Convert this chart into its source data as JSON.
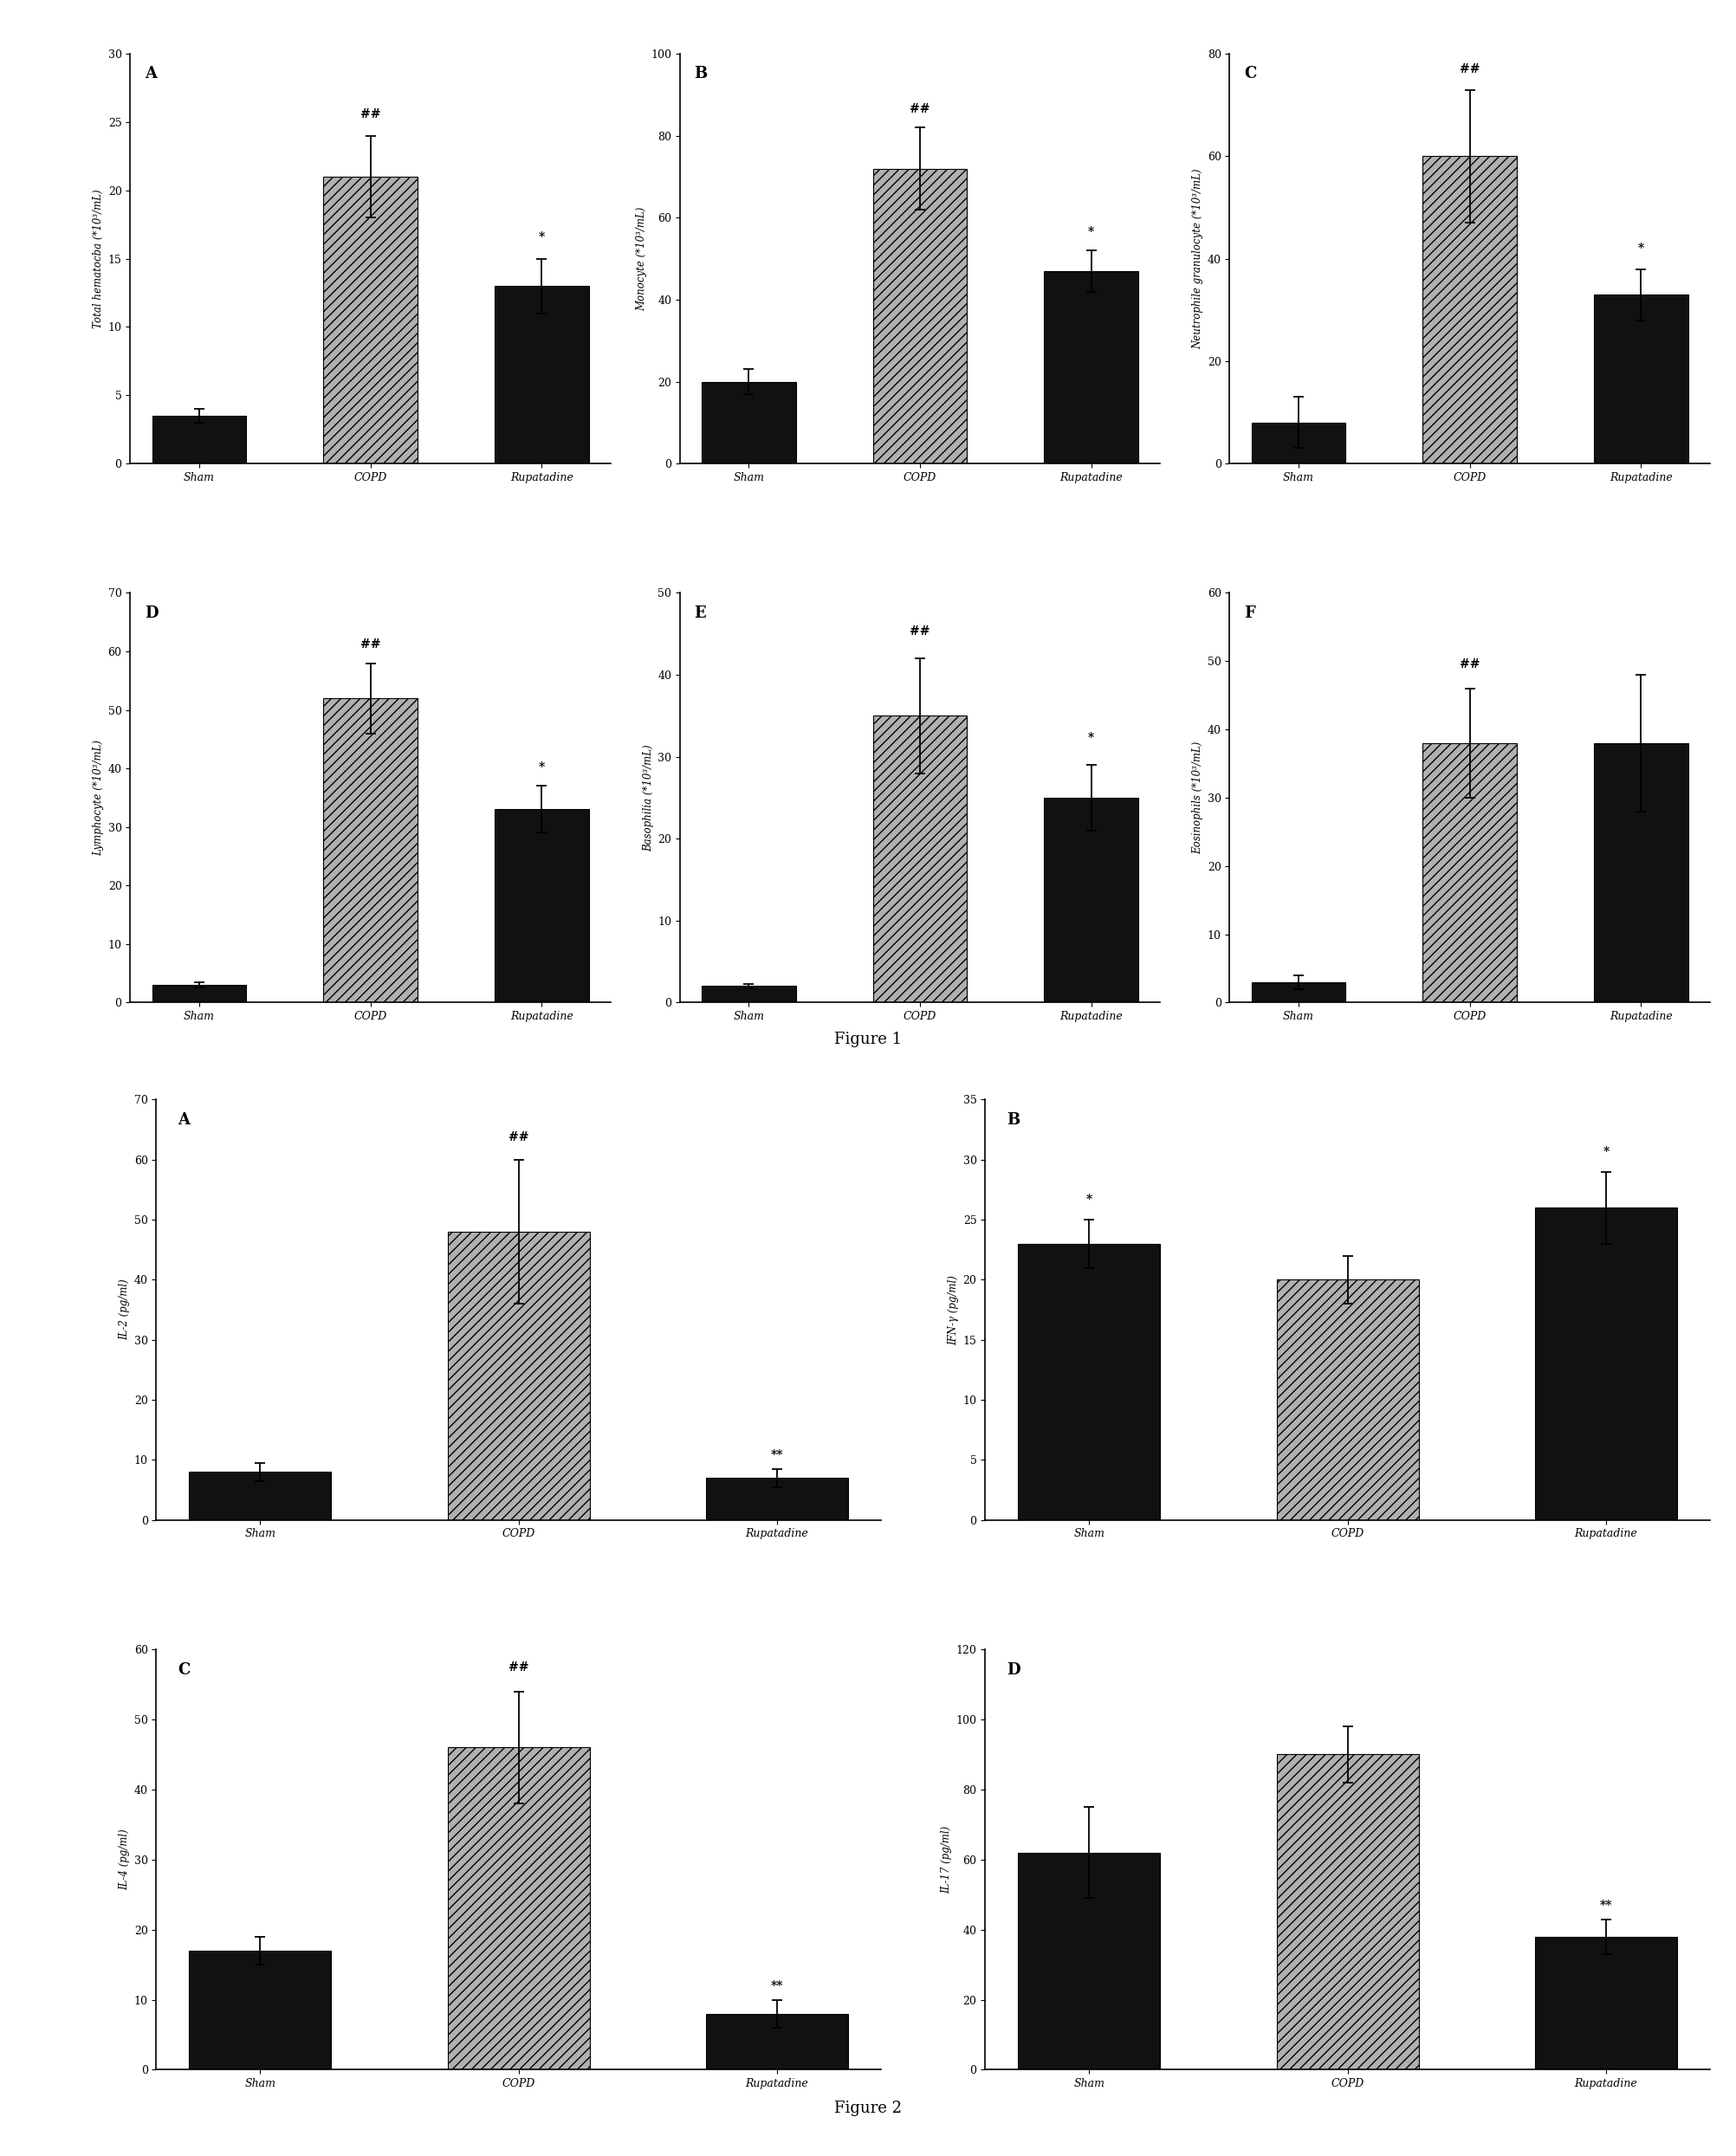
{
  "fig1": {
    "panels": [
      {
        "label": "A",
        "ylabel": "Total hematocba (*10³/mL)",
        "ylim": [
          0,
          30
        ],
        "yticks": [
          0,
          5,
          10,
          15,
          20,
          25,
          30
        ],
        "values": [
          3.5,
          21.0,
          13.0
        ],
        "errors": [
          0.5,
          3.0,
          2.0
        ],
        "colors": [
          "#111111",
          "#b0b0b0",
          "#111111"
        ],
        "hatches": [
          "",
          "///",
          ""
        ],
        "annotations": [
          "",
          "##",
          "*"
        ],
        "ann_above_error": [
          0.5,
          0.8,
          0.8
        ]
      },
      {
        "label": "B",
        "ylabel": "Monocyte (*10³/mL)",
        "ylim": [
          0,
          100
        ],
        "yticks": [
          0,
          20,
          40,
          60,
          80,
          100
        ],
        "values": [
          20.0,
          72.0,
          47.0
        ],
        "errors": [
          3.0,
          10.0,
          5.0
        ],
        "colors": [
          "#111111",
          "#b0b0b0",
          "#111111"
        ],
        "hatches": [
          "",
          "///",
          ""
        ],
        "annotations": [
          "",
          "##",
          "*"
        ],
        "ann_above_error": [
          1.0,
          2.0,
          2.0
        ]
      },
      {
        "label": "C",
        "ylabel": "Neutrophile granulocyte (*10³/mL)",
        "ylim": [
          0,
          80
        ],
        "yticks": [
          0,
          20,
          40,
          60,
          80
        ],
        "values": [
          8.0,
          60.0,
          33.0
        ],
        "errors": [
          5.0,
          13.0,
          5.0
        ],
        "colors": [
          "#111111",
          "#b0b0b0",
          "#111111"
        ],
        "hatches": [
          "",
          "///",
          ""
        ],
        "annotations": [
          "",
          "##",
          "*"
        ],
        "ann_above_error": [
          1.0,
          2.0,
          2.0
        ]
      },
      {
        "label": "D",
        "ylabel": "Lymphocyte (*10³/mL)",
        "ylim": [
          0,
          70
        ],
        "yticks": [
          0,
          10,
          20,
          30,
          40,
          50,
          60,
          70
        ],
        "values": [
          3.0,
          52.0,
          33.0
        ],
        "errors": [
          0.5,
          6.0,
          4.0
        ],
        "colors": [
          "#111111",
          "#b0b0b0",
          "#111111"
        ],
        "hatches": [
          "",
          "///",
          ""
        ],
        "annotations": [
          "",
          "##",
          "*"
        ],
        "ann_above_error": [
          0.5,
          1.5,
          1.5
        ]
      },
      {
        "label": "E",
        "ylabel": "Basophilia (*10³/mL)",
        "ylim": [
          0,
          50
        ],
        "yticks": [
          0,
          10,
          20,
          30,
          40,
          50
        ],
        "values": [
          2.0,
          35.0,
          25.0
        ],
        "errors": [
          0.3,
          7.0,
          4.0
        ],
        "colors": [
          "#111111",
          "#b0b0b0",
          "#111111"
        ],
        "hatches": [
          "",
          "///",
          ""
        ],
        "annotations": [
          "",
          "##",
          "*"
        ],
        "ann_above_error": [
          0.5,
          2.0,
          2.0
        ]
      },
      {
        "label": "F",
        "ylabel": "Eosinophils (*10³/mL)",
        "ylim": [
          0,
          60
        ],
        "yticks": [
          0,
          10,
          20,
          30,
          40,
          50,
          60
        ],
        "values": [
          3.0,
          38.0,
          38.0
        ],
        "errors": [
          1.0,
          8.0,
          10.0
        ],
        "colors": [
          "#111111",
          "#b0b0b0",
          "#111111"
        ],
        "hatches": [
          "",
          "///",
          ""
        ],
        "annotations": [
          "",
          "##",
          ""
        ],
        "ann_above_error": [
          0.5,
          2.0,
          2.0
        ]
      }
    ],
    "categories": [
      "Sham",
      "COPD",
      "Rupatadine"
    ],
    "figure_label": "Figure 1"
  },
  "fig2": {
    "panels": [
      {
        "label": "A",
        "ylabel": "IL-2 (pg/ml)",
        "ylim": [
          0,
          70
        ],
        "yticks": [
          0,
          10,
          20,
          30,
          40,
          50,
          60,
          70
        ],
        "values": [
          8.0,
          48.0,
          7.0
        ],
        "errors": [
          1.5,
          12.0,
          1.5
        ],
        "colors": [
          "#111111",
          "#b0b0b0",
          "#111111"
        ],
        "hatches": [
          "",
          "///",
          ""
        ],
        "annotations": [
          "",
          "##",
          "**"
        ],
        "ann_above_error": [
          0.5,
          2.0,
          0.5
        ]
      },
      {
        "label": "B",
        "ylabel": "IFN-γ (pg/ml)",
        "ylim": [
          0,
          35
        ],
        "yticks": [
          0,
          5,
          10,
          15,
          20,
          25,
          30,
          35
        ],
        "values": [
          23.0,
          20.0,
          26.0
        ],
        "errors": [
          2.0,
          2.0,
          3.0
        ],
        "colors": [
          "#111111",
          "#b0b0b0",
          "#111111"
        ],
        "hatches": [
          "",
          "///",
          ""
        ],
        "annotations": [
          "*",
          "",
          "*"
        ],
        "ann_above_error": [
          0.8,
          0.5,
          0.8
        ]
      },
      {
        "label": "C",
        "ylabel": "IL-4 (pg/ml)",
        "ylim": [
          0,
          60
        ],
        "yticks": [
          0,
          10,
          20,
          30,
          40,
          50,
          60
        ],
        "values": [
          17.0,
          46.0,
          8.0
        ],
        "errors": [
          2.0,
          8.0,
          2.0
        ],
        "colors": [
          "#111111",
          "#b0b0b0",
          "#111111"
        ],
        "hatches": [
          "",
          "///",
          ""
        ],
        "annotations": [
          "",
          "##",
          "**"
        ],
        "ann_above_error": [
          0.5,
          2.0,
          0.5
        ]
      },
      {
        "label": "D",
        "ylabel": "IL-17 (pg/ml)",
        "ylim": [
          0,
          120
        ],
        "yticks": [
          0,
          20,
          40,
          60,
          80,
          100,
          120
        ],
        "values": [
          62.0,
          90.0,
          38.0
        ],
        "errors": [
          13.0,
          8.0,
          5.0
        ],
        "colors": [
          "#111111",
          "#b0b0b0",
          "#111111"
        ],
        "hatches": [
          "",
          "///",
          ""
        ],
        "annotations": [
          "",
          "",
          "**"
        ],
        "ann_above_error": [
          2.0,
          2.0,
          1.0
        ]
      }
    ],
    "categories": [
      "Sham",
      "COPD",
      "Rupatadine"
    ],
    "figure_label": "Figure 2"
  },
  "bar_width": 0.55,
  "background_color": "#ffffff",
  "tick_fontsize": 9,
  "label_fontsize": 8.5,
  "panel_label_fontsize": 13,
  "ann_fontsize": 10,
  "figure_label_fontsize": 13
}
